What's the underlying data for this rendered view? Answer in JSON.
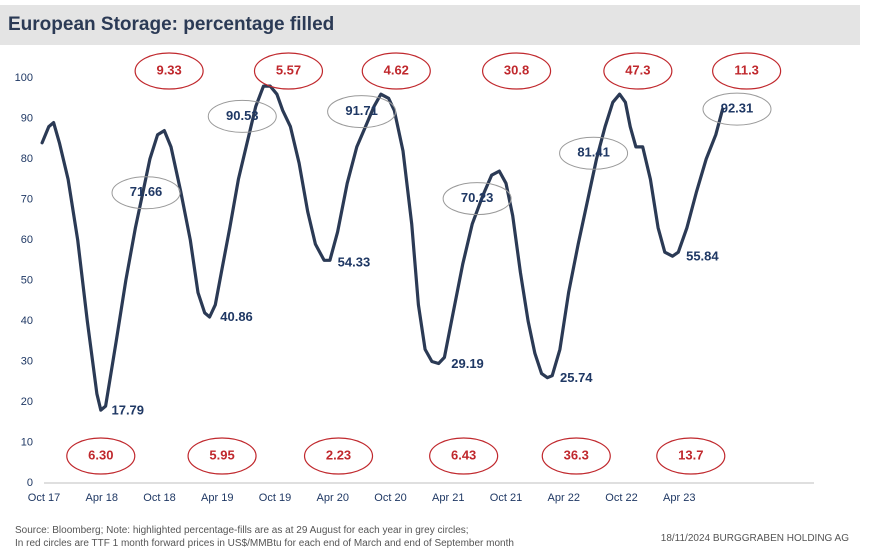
{
  "title": "European Storage: percentage filled",
  "footer": {
    "line1": "Source: Bloomberg; Note: highlighted percentage-fills are as at 29 August for each year in grey circles;",
    "line2": "In red circles are TTF 1 month forward prices in US$/MMBtu for each end of March and end of September month",
    "right": "18/11/2024  BURGGRABEN HOLDING AG"
  },
  "colors": {
    "line": "#2b3a55",
    "grey_circle": "#9a9a9a",
    "red_circle": "#c0282d"
  },
  "chart_data": {
    "type": "line",
    "title": "European Storage: percentage filled",
    "ylim": [
      0,
      100
    ],
    "yticks": [
      0,
      10,
      20,
      30,
      40,
      50,
      60,
      70,
      80,
      90,
      100
    ],
    "xlim": [
      0,
      80
    ],
    "xticks": [
      {
        "x": 0,
        "label": "Oct 17"
      },
      {
        "x": 6,
        "label": "Apr 18"
      },
      {
        "x": 12,
        "label": "Oct 18"
      },
      {
        "x": 18,
        "label": "Apr 19"
      },
      {
        "x": 24,
        "label": "Oct 19"
      },
      {
        "x": 30,
        "label": "Apr 20"
      },
      {
        "x": 36,
        "label": "Oct 20"
      },
      {
        "x": 42,
        "label": "Apr 21"
      },
      {
        "x": 48,
        "label": "Oct 21"
      },
      {
        "x": 54,
        "label": "Apr 22"
      },
      {
        "x": 60,
        "label": "Oct 22"
      },
      {
        "x": 66,
        "label": "Apr 23"
      }
    ],
    "grid": false,
    "series": [
      {
        "values": [
          [
            -0.2,
            84
          ],
          [
            0.5,
            88
          ],
          [
            1.0,
            89
          ],
          [
            1.6,
            84
          ],
          [
            2.5,
            75
          ],
          [
            3.5,
            60
          ],
          [
            4.5,
            40
          ],
          [
            5.5,
            22
          ],
          [
            5.9,
            18
          ],
          [
            6.4,
            19
          ],
          [
            7.5,
            35
          ],
          [
            8.5,
            50
          ],
          [
            9.5,
            63
          ],
          [
            10.3,
            72
          ],
          [
            11.0,
            80
          ],
          [
            11.8,
            86
          ],
          [
            12.5,
            87
          ],
          [
            13.2,
            83
          ],
          [
            14.2,
            72
          ],
          [
            15.2,
            60
          ],
          [
            16.0,
            47
          ],
          [
            16.7,
            42
          ],
          [
            17.2,
            41
          ],
          [
            17.8,
            44
          ],
          [
            18.5,
            53
          ],
          [
            19.3,
            63
          ],
          [
            20.2,
            75
          ],
          [
            21.1,
            84
          ],
          [
            22.0,
            93
          ],
          [
            22.8,
            98
          ],
          [
            23.5,
            98
          ],
          [
            24.2,
            96
          ],
          [
            24.8,
            92
          ],
          [
            25.6,
            88
          ],
          [
            26.5,
            79
          ],
          [
            27.4,
            67
          ],
          [
            28.2,
            59
          ],
          [
            29.1,
            55
          ],
          [
            29.7,
            55
          ],
          [
            30.5,
            62
          ],
          [
            31.5,
            74
          ],
          [
            32.5,
            83
          ],
          [
            33.4,
            88
          ],
          [
            34.3,
            93
          ],
          [
            35.0,
            96
          ],
          [
            35.8,
            95
          ],
          [
            36.4,
            92
          ],
          [
            37.3,
            82
          ],
          [
            38.2,
            64
          ],
          [
            38.9,
            44
          ],
          [
            39.6,
            33
          ],
          [
            40.3,
            30
          ],
          [
            41.0,
            29.5
          ],
          [
            41.6,
            31
          ],
          [
            42.5,
            42
          ],
          [
            43.5,
            54
          ],
          [
            44.5,
            64
          ],
          [
            45.6,
            71
          ],
          [
            46.5,
            76
          ],
          [
            47.3,
            77
          ],
          [
            48.0,
            74
          ],
          [
            48.7,
            66
          ],
          [
            49.5,
            52
          ],
          [
            50.3,
            40
          ],
          [
            51.0,
            32
          ],
          [
            51.7,
            27
          ],
          [
            52.3,
            26
          ],
          [
            52.8,
            26.5
          ],
          [
            53.6,
            33
          ],
          [
            54.5,
            47
          ],
          [
            55.5,
            59
          ],
          [
            56.5,
            70
          ],
          [
            57.4,
            80
          ],
          [
            58.3,
            88
          ],
          [
            59.1,
            94
          ],
          [
            59.8,
            96
          ],
          [
            60.4,
            94
          ],
          [
            60.9,
            88
          ],
          [
            61.5,
            83
          ],
          [
            62.2,
            83
          ],
          [
            63.0,
            75
          ],
          [
            63.8,
            63
          ],
          [
            64.5,
            57
          ],
          [
            65.3,
            56
          ],
          [
            65.9,
            57
          ],
          [
            66.8,
            63
          ],
          [
            67.8,
            72
          ],
          [
            68.8,
            80
          ],
          [
            69.8,
            86
          ],
          [
            70.5,
            92.3
          ]
        ]
      }
    ],
    "grey_labels": [
      {
        "x": 10.6,
        "y": 71.66,
        "text": "71.66"
      },
      {
        "x": 20.6,
        "y": 90.53,
        "text": "90.53"
      },
      {
        "x": 33.0,
        "y": 91.71,
        "text": "91.71"
      },
      {
        "x": 45.0,
        "y": 70.23,
        "text": "70.23"
      },
      {
        "x": 57.1,
        "y": 81.41,
        "text": "81.41"
      },
      {
        "x": 72.0,
        "y": 92.31,
        "text": "92.31"
      }
    ],
    "value_labels": [
      {
        "x": 6.7,
        "y": 17.79,
        "text": "17.79"
      },
      {
        "x": 18.0,
        "y": 40.86,
        "text": "40.86"
      },
      {
        "x": 30.2,
        "y": 54.33,
        "text": "54.33"
      },
      {
        "x": 42.0,
        "y": 29.19,
        "text": "29.19"
      },
      {
        "x": 53.3,
        "y": 25.74,
        "text": "25.74"
      },
      {
        "x": 66.4,
        "y": 55.84,
        "text": "55.84"
      }
    ],
    "red_labels_top": [
      {
        "x": 13.0,
        "text": "9.33"
      },
      {
        "x": 25.4,
        "text": "5.57"
      },
      {
        "x": 36.6,
        "text": "4.62"
      },
      {
        "x": 49.1,
        "text": "30.8"
      },
      {
        "x": 61.7,
        "text": "47.3"
      },
      {
        "x": 73.0,
        "text": "11.3"
      }
    ],
    "red_labels_bottom": [
      {
        "x": 5.9,
        "text": "6.30"
      },
      {
        "x": 18.5,
        "text": "5.95"
      },
      {
        "x": 30.6,
        "text": "2.23"
      },
      {
        "x": 43.6,
        "text": "6.43"
      },
      {
        "x": 55.3,
        "text": "36.3"
      },
      {
        "x": 67.2,
        "text": "13.7"
      }
    ]
  }
}
